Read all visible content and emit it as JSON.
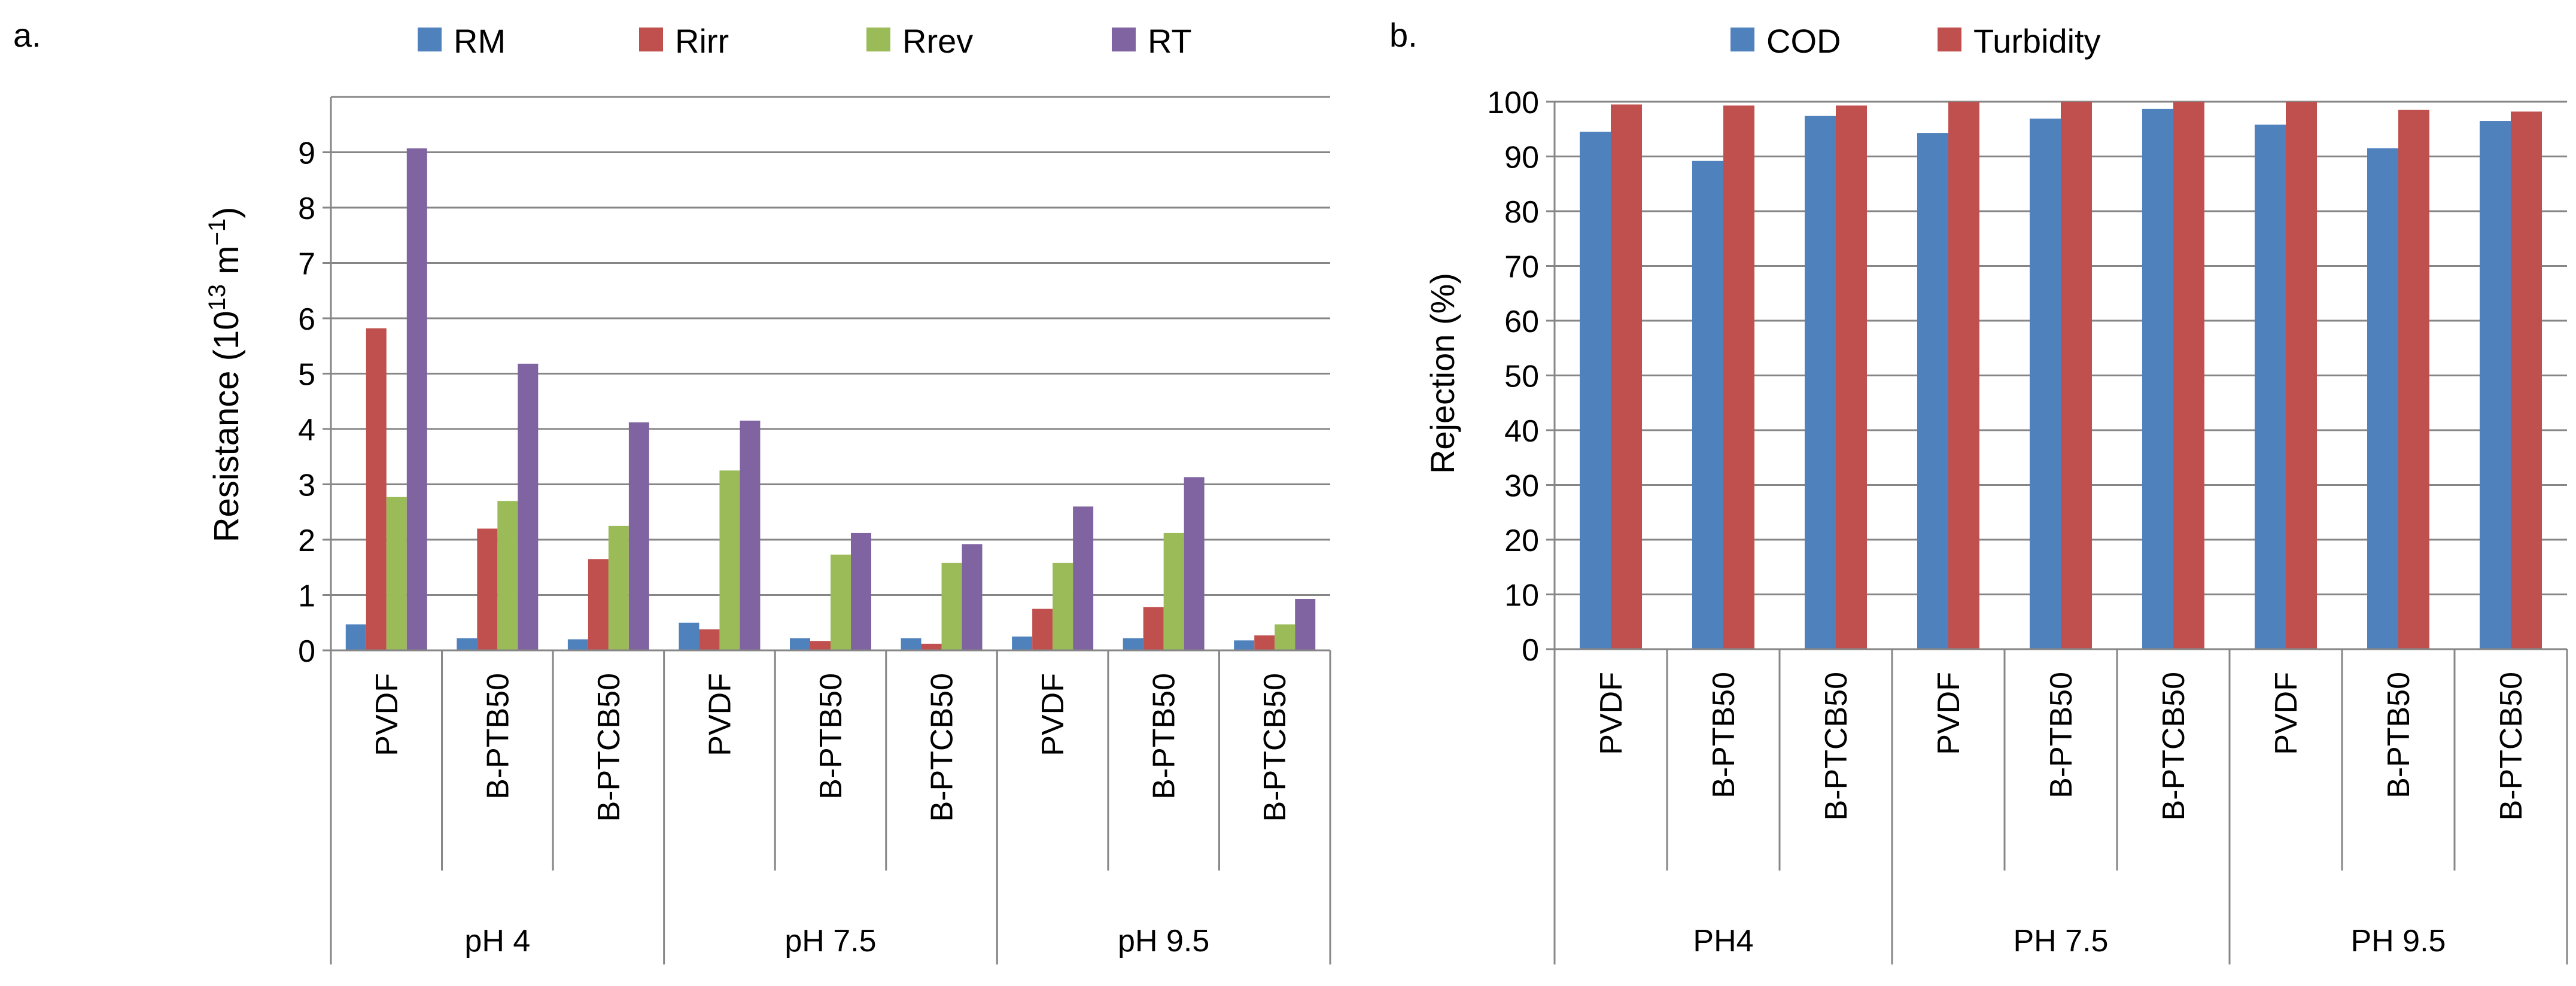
{
  "figure": {
    "panel_a_label": "a.",
    "panel_b_label": "b."
  },
  "colors": {
    "RM": "#4f81bd",
    "Rirr": "#c0504d",
    "Rrev": "#9bbb59",
    "RT": "#8064a2",
    "COD": "#4f81bd",
    "Turbidity": "#c0504d",
    "grid": "#868686",
    "axis": "#868686"
  },
  "chart_data": [
    {
      "type": "bar",
      "panel": "a.",
      "title": "",
      "ylabel_main": "Resistance (10",
      "ylabel_sup": "13",
      "ylabel_unit": " m",
      "ylabel_unit_sup": "−1",
      "ylabel_close": ")",
      "ylim": [
        0,
        10
      ],
      "yticks": [
        0,
        1,
        2,
        3,
        4,
        5,
        6,
        7,
        8,
        9
      ],
      "grid": true,
      "legend_position": "top",
      "categories": [
        "PVDF",
        "B-PTB50",
        "B-PTCB50",
        "PVDF",
        "B-PTB50",
        "B-PTCB50",
        "PVDF",
        "B-PTB50",
        "B-PTCB50"
      ],
      "groups": [
        "pH 4",
        "pH 7.5",
        "pH 9.5"
      ],
      "series": [
        {
          "name": "RM",
          "values": [
            0.47,
            0.22,
            0.2,
            0.5,
            0.22,
            0.22,
            0.25,
            0.22,
            0.18
          ]
        },
        {
          "name": "Rirr",
          "values": [
            5.82,
            2.2,
            1.65,
            0.38,
            0.17,
            0.12,
            0.75,
            0.78,
            0.27
          ]
        },
        {
          "name": "Rrev",
          "values": [
            2.77,
            2.7,
            2.25,
            3.25,
            1.73,
            1.58,
            1.58,
            2.12,
            0.47
          ]
        },
        {
          "name": "RT",
          "values": [
            9.07,
            5.18,
            4.12,
            4.15,
            2.12,
            1.92,
            2.6,
            3.13,
            0.93
          ]
        }
      ]
    },
    {
      "type": "bar",
      "panel": "b.",
      "title": "",
      "ylabel": "Rejection (%)",
      "ylim": [
        0,
        100
      ],
      "yticks": [
        0,
        10,
        20,
        30,
        40,
        50,
        60,
        70,
        80,
        90,
        100
      ],
      "grid": true,
      "legend_position": "top",
      "categories": [
        "PVDF",
        "B-PTB50",
        "B-PTCB50",
        "PVDF",
        "B-PTB50",
        "B-PTCB50",
        "PVDF",
        "B-PTB50",
        "B-PTCB50"
      ],
      "groups": [
        "PH4",
        "PH 7.5",
        "PH 9.5"
      ],
      "series": [
        {
          "name": "COD",
          "values": [
            94.5,
            89.2,
            97.4,
            94.3,
            96.9,
            98.7,
            95.8,
            91.5,
            96.5
          ]
        },
        {
          "name": "Turbidity",
          "values": [
            99.5,
            99.3,
            99.3,
            100,
            100,
            100,
            100,
            98.5,
            98.2
          ]
        }
      ]
    }
  ]
}
